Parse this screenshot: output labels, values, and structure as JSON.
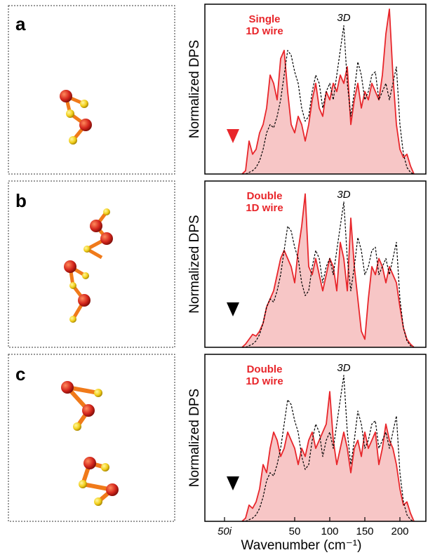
{
  "chart_data": [
    {
      "type": "line",
      "panel_label": "a",
      "ylabel": "Normalized DPS",
      "annotation": [
        "Single",
        "1D wire"
      ],
      "arrow_color": "#e8262b",
      "xlim": [
        -78,
        237
      ],
      "ylim": [
        0,
        1.03
      ],
      "x": [
        -25,
        -20,
        -15,
        -10,
        -5,
        0,
        5,
        10,
        15,
        20,
        25,
        30,
        35,
        40,
        45,
        50,
        55,
        60,
        65,
        70,
        75,
        80,
        85,
        90,
        95,
        100,
        105,
        110,
        115,
        120,
        125,
        130,
        135,
        140,
        145,
        150,
        155,
        160,
        165,
        170,
        175,
        180,
        185,
        190,
        195,
        200,
        205,
        210,
        215,
        220
      ],
      "series": [
        {
          "color": "#e8262b",
          "fill": "#f7c6c6",
          "values": [
            0,
            0.02,
            0.2,
            0.12,
            0.15,
            0.25,
            0.3,
            0.4,
            0.6,
            0.55,
            0.45,
            0.7,
            0.75,
            0.5,
            0.3,
            0.25,
            0.35,
            0.3,
            0.2,
            0.3,
            0.45,
            0.55,
            0.4,
            0.35,
            0.5,
            0.45,
            0.55,
            0.5,
            0.6,
            0.55,
            0.65,
            0.3,
            0.45,
            0.55,
            0.4,
            0.5,
            0.45,
            0.55,
            0.5,
            0.45,
            0.6,
            0.85,
            1.0,
            0.6,
            0.3,
            0.15,
            0.1,
            0.12,
            0.05,
            0
          ]
        },
        {
          "name": "3D",
          "color": "#000000",
          "dashed": true,
          "values": [
            0,
            0,
            0.01,
            0.02,
            0.04,
            0.08,
            0.15,
            0.25,
            0.3,
            0.28,
            0.35,
            0.45,
            0.6,
            0.75,
            0.72,
            0.62,
            0.55,
            0.4,
            0.32,
            0.35,
            0.5,
            0.6,
            0.55,
            0.4,
            0.5,
            0.55,
            0.45,
            0.6,
            0.75,
            0.9,
            0.55,
            0.35,
            0.5,
            0.68,
            0.6,
            0.45,
            0.5,
            0.6,
            0.62,
            0.45,
            0.5,
            0.55,
            0.45,
            0.55,
            0.65,
            0.3,
            0.12,
            0.04,
            0.01,
            0
          ]
        }
      ]
    },
    {
      "type": "line",
      "panel_label": "b",
      "ylabel": "Normalized DPS",
      "annotation": [
        "Double",
        "1D wire"
      ],
      "arrow_color": "#000000",
      "xlim": [
        -78,
        237
      ],
      "ylim": [
        0,
        1.03
      ],
      "x": [
        -25,
        -20,
        -15,
        -10,
        -5,
        0,
        5,
        10,
        15,
        20,
        25,
        30,
        35,
        40,
        45,
        50,
        55,
        60,
        65,
        70,
        75,
        80,
        85,
        90,
        95,
        100,
        105,
        110,
        115,
        120,
        125,
        130,
        135,
        140,
        145,
        150,
        155,
        160,
        165,
        170,
        175,
        180,
        185,
        190,
        195,
        200,
        205,
        210,
        215,
        220
      ],
      "series": [
        {
          "color": "#e8262b",
          "fill": "#f7c6c6",
          "values": [
            0,
            0.02,
            0.05,
            0.08,
            0.07,
            0.1,
            0.15,
            0.25,
            0.3,
            0.35,
            0.45,
            0.55,
            0.6,
            0.55,
            0.5,
            0.4,
            0.6,
            0.75,
            0.95,
            0.5,
            0.45,
            0.55,
            0.45,
            0.35,
            0.45,
            0.55,
            0.5,
            0.35,
            0.65,
            0.55,
            0.35,
            0.8,
            0.5,
            0.3,
            0.1,
            0.05,
            0.3,
            0.5,
            0.45,
            0.55,
            0.5,
            0.4,
            0.5,
            0.45,
            0.4,
            0.25,
            0.12,
            0.05,
            0.02,
            0
          ]
        },
        {
          "name": "3D",
          "color": "#000000",
          "dashed": true,
          "values": [
            0,
            0,
            0.01,
            0.02,
            0.04,
            0.08,
            0.15,
            0.25,
            0.3,
            0.28,
            0.35,
            0.45,
            0.6,
            0.75,
            0.72,
            0.62,
            0.55,
            0.4,
            0.32,
            0.35,
            0.5,
            0.6,
            0.55,
            0.4,
            0.5,
            0.55,
            0.45,
            0.6,
            0.75,
            0.9,
            0.55,
            0.35,
            0.5,
            0.68,
            0.6,
            0.45,
            0.5,
            0.6,
            0.62,
            0.45,
            0.5,
            0.55,
            0.45,
            0.55,
            0.65,
            0.3,
            0.12,
            0.04,
            0.01,
            0
          ]
        }
      ]
    },
    {
      "type": "line",
      "panel_label": "c",
      "ylabel": "Normalized DPS",
      "annotation": [
        "Double",
        "1D wire"
      ],
      "arrow_color": "#000000",
      "xlabel": "Wavenumber (cm⁻¹)",
      "xlim": [
        -78,
        237
      ],
      "ylim": [
        0,
        1.03
      ],
      "xticks": [
        {
          "value": -50,
          "label": "50i"
        },
        50,
        100,
        150,
        200
      ],
      "x": [
        -25,
        -20,
        -15,
        -10,
        -5,
        0,
        5,
        10,
        15,
        20,
        25,
        30,
        35,
        40,
        45,
        50,
        55,
        60,
        65,
        70,
        75,
        80,
        85,
        90,
        95,
        100,
        105,
        110,
        115,
        120,
        125,
        130,
        135,
        140,
        145,
        150,
        155,
        160,
        165,
        170,
        175,
        180,
        185,
        190,
        195,
        200,
        205,
        210,
        215,
        220
      ],
      "series": [
        {
          "color": "#e8262b",
          "fill": "#f7c6c6",
          "values": [
            0,
            0.02,
            0.1,
            0.08,
            0.12,
            0.2,
            0.35,
            0.3,
            0.45,
            0.55,
            0.5,
            0.4,
            0.45,
            0.55,
            0.5,
            0.45,
            0.35,
            0.45,
            0.4,
            0.5,
            0.55,
            0.45,
            0.5,
            0.55,
            0.6,
            0.8,
            0.5,
            0.35,
            0.45,
            0.55,
            0.45,
            0.3,
            0.45,
            0.5,
            0.4,
            0.55,
            0.45,
            0.5,
            0.55,
            0.35,
            0.45,
            0.6,
            0.5,
            0.45,
            0.35,
            0.2,
            0.1,
            0.12,
            0.05,
            0
          ]
        },
        {
          "name": "3D",
          "color": "#000000",
          "dashed": true,
          "values": [
            0,
            0,
            0.01,
            0.02,
            0.04,
            0.08,
            0.15,
            0.25,
            0.3,
            0.28,
            0.35,
            0.45,
            0.6,
            0.75,
            0.72,
            0.62,
            0.55,
            0.4,
            0.32,
            0.35,
            0.5,
            0.6,
            0.55,
            0.4,
            0.5,
            0.55,
            0.45,
            0.6,
            0.75,
            0.9,
            0.55,
            0.35,
            0.5,
            0.68,
            0.6,
            0.45,
            0.5,
            0.6,
            0.62,
            0.45,
            0.5,
            0.55,
            0.45,
            0.55,
            0.65,
            0.3,
            0.12,
            0.04,
            0.01,
            0
          ]
        }
      ]
    }
  ]
}
